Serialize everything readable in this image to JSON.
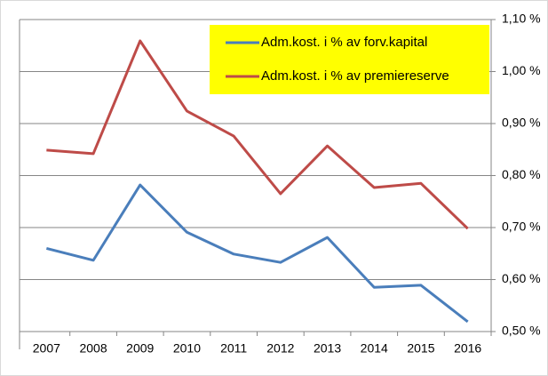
{
  "chart_data": {
    "type": "line",
    "categories": [
      "2007",
      "2008",
      "2009",
      "2010",
      "2011",
      "2012",
      "2013",
      "2014",
      "2015",
      "2016"
    ],
    "series": [
      {
        "name": "Adm.kost. i % av forv.kapital",
        "color": "#4a7ebb",
        "values": [
          0.66,
          0.637,
          0.782,
          0.691,
          0.649,
          0.633,
          0.681,
          0.585,
          0.589,
          0.519
        ]
      },
      {
        "name": "Adm.kost. i % av premiereserve",
        "color": "#be4b48",
        "values": [
          0.849,
          0.842,
          1.059,
          0.924,
          0.876,
          0.765,
          0.857,
          0.777,
          0.785,
          0.698
        ]
      }
    ],
    "ylim": [
      0.5,
      1.1
    ],
    "yticks": [
      {
        "value": 0.5,
        "label": "0,50 %"
      },
      {
        "value": 0.6,
        "label": "0,60 %"
      },
      {
        "value": 0.7,
        "label": "0,70 %"
      },
      {
        "value": 0.8,
        "label": "0,80 %"
      },
      {
        "value": 0.9,
        "label": "0,90 %"
      },
      {
        "value": 1.0,
        "label": "1,00 %"
      },
      {
        "value": 1.1,
        "label": "1,10 %"
      }
    ],
    "grid": true,
    "y_axis_side": "right",
    "legend": "top-right",
    "legend_background": "#ffff00"
  }
}
